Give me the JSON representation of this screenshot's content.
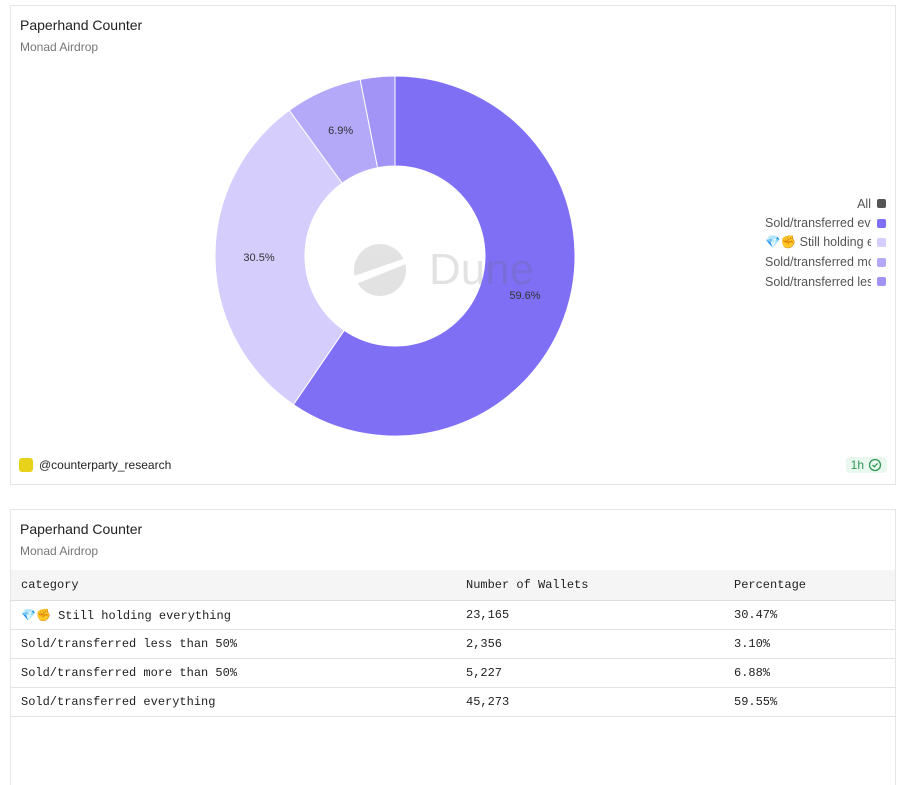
{
  "chart_data": {
    "type": "pie",
    "title": "Paperhand Counter",
    "subtitle": "Monad Airdrop",
    "categories": [
      "Sold/transferred everything",
      "💎✊ Still holding everything",
      "Sold/transferred more than 50%",
      "Sold/transferred less than 50%"
    ],
    "values": [
      59.6,
      30.5,
      6.9,
      3.1
    ],
    "value_labels": [
      "59.6%",
      "30.5%",
      "6.9%",
      null
    ],
    "colors": [
      "#7f6ff5",
      "#d5cdfc",
      "#b4a8f9",
      "#a293f7"
    ],
    "donut": true,
    "legend_all": "All",
    "legend": "right",
    "watermark": "Dune",
    "author": "@counterparty_research",
    "freshness": "1h"
  },
  "table": {
    "title": "Paperhand Counter",
    "subtitle": "Monad Airdrop",
    "columns": [
      "category",
      "Number of Wallets",
      "Percentage"
    ],
    "rows": [
      [
        "💎✊ Still holding everything",
        "23,165",
        "30.47%"
      ],
      [
        "Sold/transferred less than 50%",
        "2,356",
        "3.10%"
      ],
      [
        "Sold/transferred more than 50%",
        "5,227",
        "6.88%"
      ],
      [
        "Sold/transferred everything",
        "45,273",
        "59.55%"
      ]
    ]
  }
}
